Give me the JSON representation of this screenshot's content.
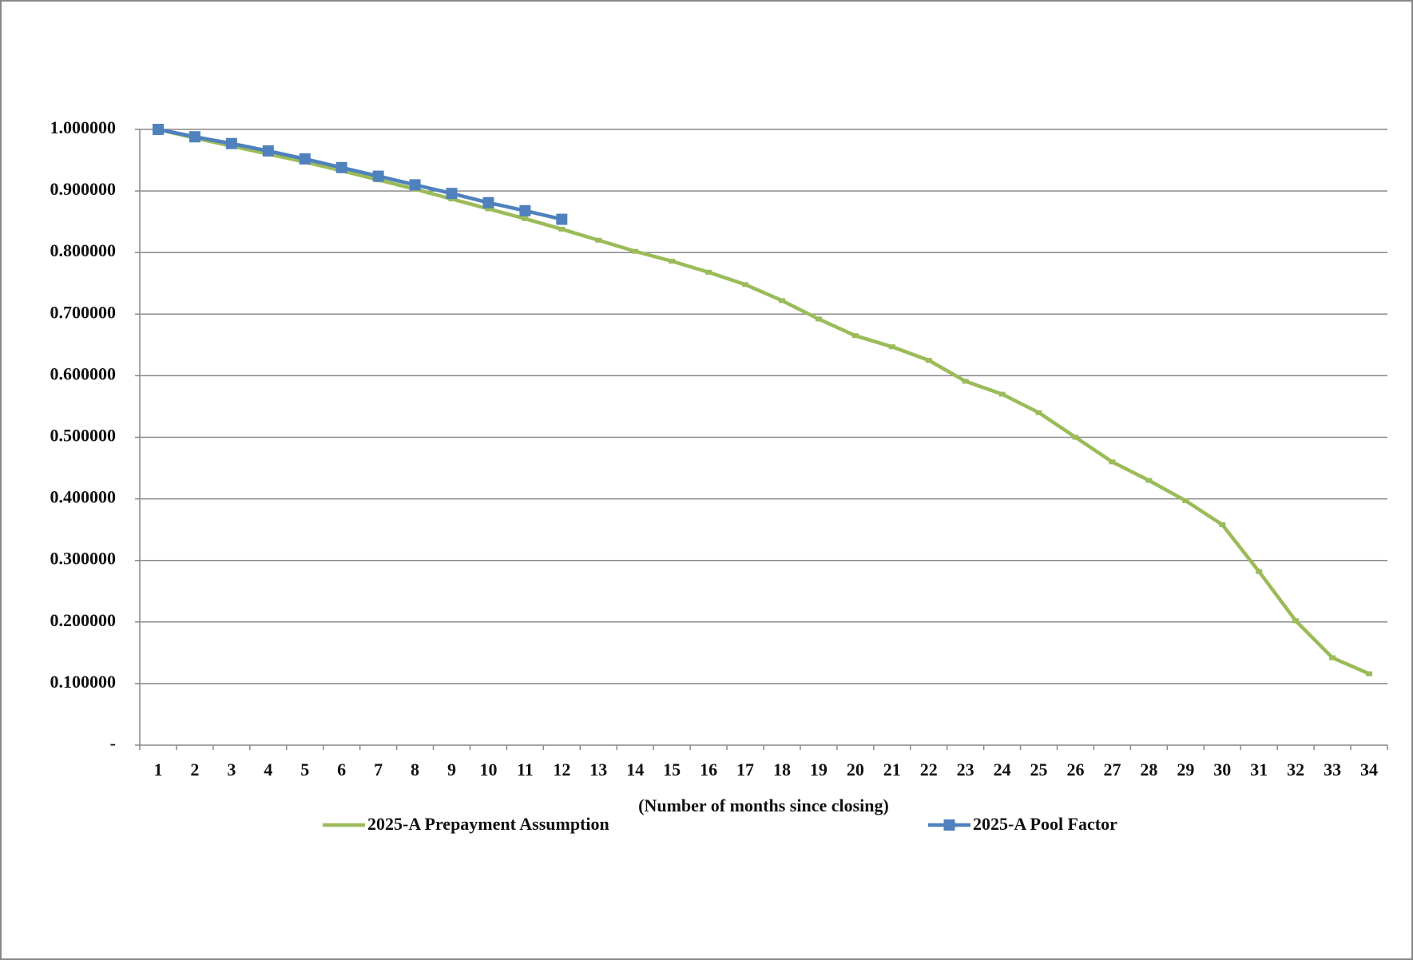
{
  "chart_data": {
    "type": "line",
    "x_label": "(Number of months since closing)",
    "categories": [
      "1",
      "2",
      "3",
      "4",
      "5",
      "6",
      "7",
      "8",
      "9",
      "10",
      "11",
      "12",
      "13",
      "14",
      "15",
      "16",
      "17",
      "18",
      "19",
      "20",
      "21",
      "22",
      "23",
      "24",
      "25",
      "26",
      "27",
      "28",
      "29",
      "30",
      "31",
      "32",
      "33",
      "34"
    ],
    "series": [
      {
        "name": "2025-A Prepayment Assumption",
        "color": "#9bbb59",
        "marker": "none",
        "values": [
          1.0,
          0.986,
          0.973,
          0.96,
          0.947,
          0.933,
          0.918,
          0.903,
          0.887,
          0.871,
          0.855,
          0.838,
          0.82,
          0.802,
          0.786,
          0.768,
          0.748,
          0.722,
          0.692,
          0.665,
          0.647,
          0.625,
          0.591,
          0.57,
          0.54,
          0.5,
          0.46,
          0.43,
          0.397,
          0.358,
          0.282,
          0.202,
          0.142,
          0.116
        ]
      },
      {
        "name": "2025-A Pool Factor",
        "color": "#4f81bd",
        "marker": "square",
        "values": [
          1.0,
          0.988,
          0.977,
          0.965,
          0.952,
          0.938,
          0.924,
          0.91,
          0.896,
          0.881,
          0.868,
          0.854,
          null,
          null,
          null,
          null,
          null,
          null,
          null,
          null,
          null,
          null,
          null,
          null,
          null,
          null,
          null,
          null,
          null,
          null,
          null,
          null,
          null,
          null
        ]
      }
    ],
    "ylim": [
      0,
      1
    ],
    "yticks": [
      {
        "value": 0,
        "label": "-"
      },
      {
        "value": 0.1,
        "label": "0.100000"
      },
      {
        "value": 0.2,
        "label": "0.200000"
      },
      {
        "value": 0.3,
        "label": "0.300000"
      },
      {
        "value": 0.4,
        "label": "0.400000"
      },
      {
        "value": 0.5,
        "label": "0.500000"
      },
      {
        "value": 0.6,
        "label": "0.600000"
      },
      {
        "value": 0.7,
        "label": "0.700000"
      },
      {
        "value": 0.8,
        "label": "0.800000"
      },
      {
        "value": 0.9,
        "label": "0.900000"
      },
      {
        "value": 1,
        "label": "1.000000"
      }
    ],
    "grid": true,
    "legend": "bottom"
  }
}
